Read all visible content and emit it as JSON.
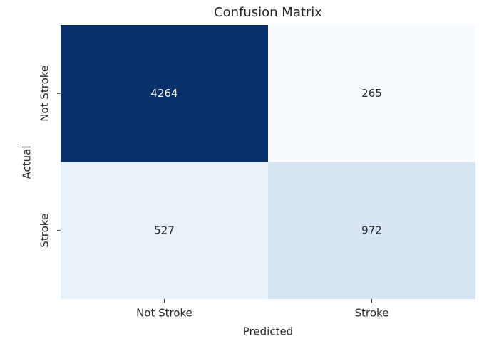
{
  "chart_data": {
    "type": "heatmap",
    "title": "Confusion Matrix",
    "x_label": "Predicted",
    "y_label": "Actual",
    "x_categories": [
      "Not Stroke",
      "Stroke"
    ],
    "y_categories": [
      "Not Stroke",
      "Stroke"
    ],
    "values": [
      [
        4264,
        265
      ],
      [
        527,
        972
      ]
    ],
    "colors": [
      [
        "#08306b",
        "#f7fbff"
      ],
      [
        "#e7f1fa",
        "#d5e5f4"
      ]
    ]
  }
}
